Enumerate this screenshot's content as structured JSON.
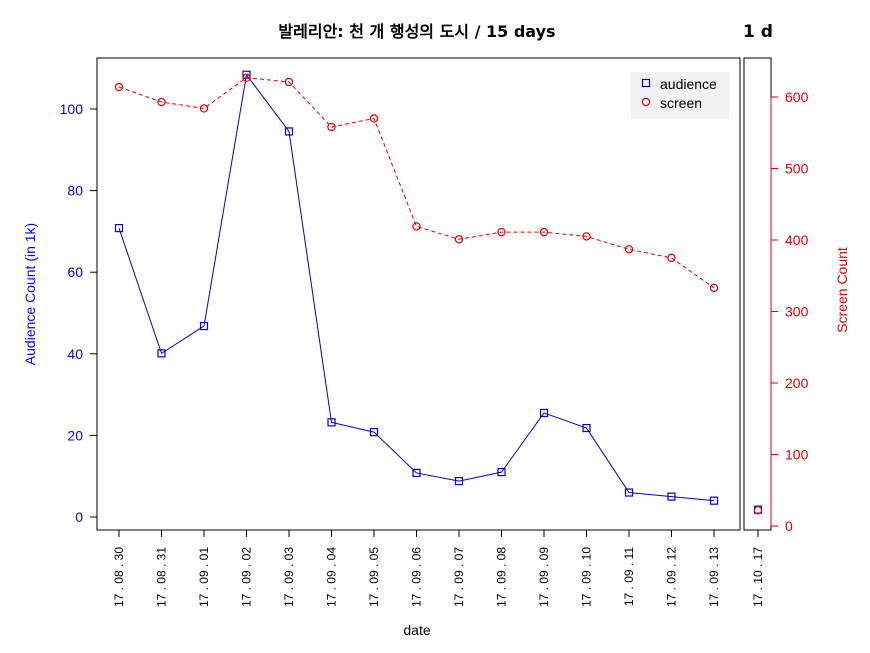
{
  "chart_data": {
    "type": "line",
    "title": "발레리안: 천 개 행성의 도시 / 15 days",
    "side_title": "1 d",
    "xlabel": "date",
    "ylabel_left": "Audience Count (in 1k)",
    "ylabel_right": "Screen Count",
    "categories": [
      "17 . 08 . 30",
      "17 . 08 . 31",
      "17 . 09 . 01",
      "17 . 09 . 02",
      "17 . 09 . 03",
      "17 . 09 . 04",
      "17 . 09 . 05",
      "17 . 09 . 06",
      "17 . 09 . 07",
      "17 . 09 . 08",
      "17 . 09 . 09",
      "17 . 09 . 10",
      "17 . 09 . 11",
      "17 . 09 . 12",
      "17 . 09 . 13"
    ],
    "side_category": "17 . 10 . 17",
    "ylim_left": [
      0,
      110
    ],
    "ylim_right": [
      0,
      650
    ],
    "yticks_left": [
      0,
      20,
      40,
      60,
      80,
      100
    ],
    "yticks_right": [
      0,
      100,
      200,
      300,
      400,
      500,
      600
    ],
    "legend_position": "top-right",
    "series": [
      {
        "name": "audience",
        "axis": "left",
        "color": "#0000cc",
        "marker": "square",
        "line": "solid",
        "values": [
          70.8,
          40.1,
          46.8,
          108.4,
          94.5,
          23.2,
          20.8,
          10.8,
          8.8,
          11.0,
          25.5,
          21.8,
          6.0,
          5.0,
          4.0
        ],
        "side_value": 1.8
      },
      {
        "name": "screen",
        "axis": "right",
        "color": "#e00000",
        "marker": "circle",
        "line": "dashed",
        "values": [
          614,
          593,
          584,
          627,
          621,
          558,
          570,
          419,
          401,
          411,
          411,
          405,
          387,
          375,
          333
        ],
        "side_value": 22
      }
    ]
  }
}
